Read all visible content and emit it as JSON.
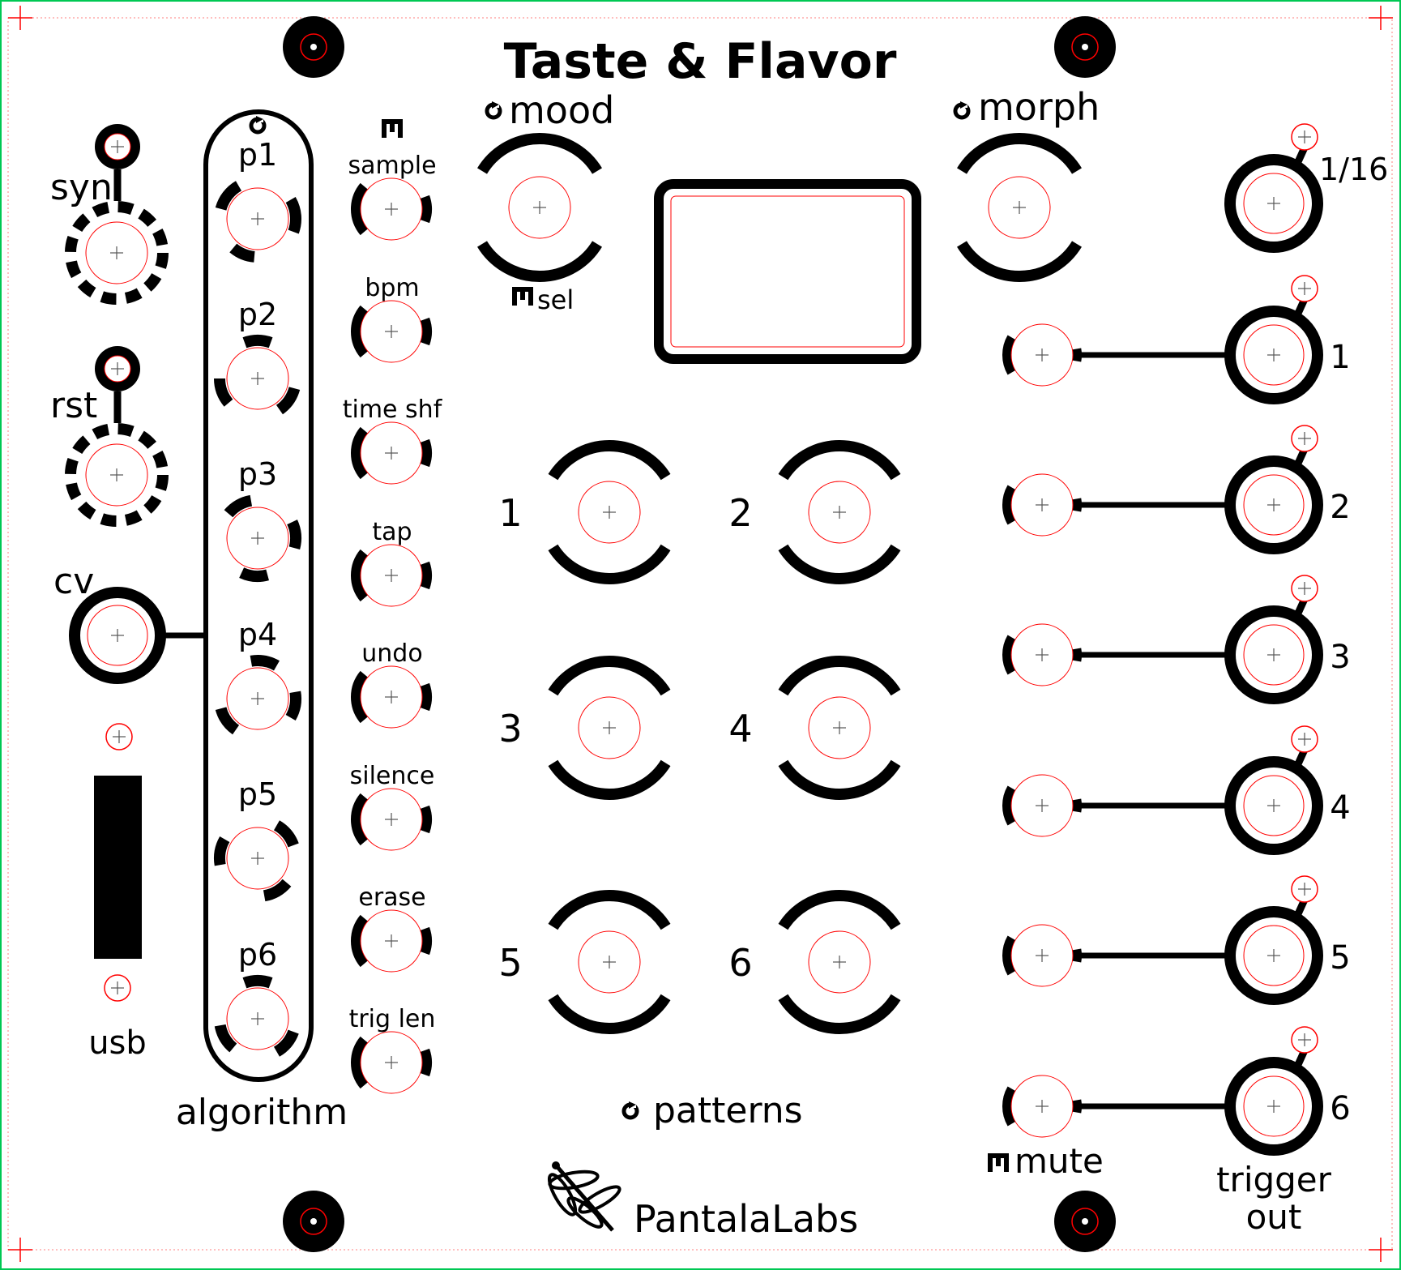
{
  "panel": {
    "title": "Taste & Flavor",
    "brand": "PantalaLabs",
    "brand_icon": "dragonfly-icon",
    "colors": {
      "ink": "#000000",
      "guide": "#ff0000",
      "outline": "#00c853",
      "background": "#ffffff"
    }
  },
  "left": {
    "syn_label": "syn",
    "rst_label": "rst",
    "cv_label": "cv",
    "usb_label": "usb"
  },
  "algorithm": {
    "label": "algorithm",
    "params": [
      "p1",
      "p2",
      "p3",
      "p4",
      "p5",
      "p6"
    ]
  },
  "functions": [
    "sample",
    "bpm",
    "time shf",
    "tap",
    "undo",
    "silence",
    "erase",
    "trig len"
  ],
  "mood": {
    "label": "mood",
    "sel_label": "sel"
  },
  "morph": {
    "label": "morph"
  },
  "patterns": {
    "label": "patterns",
    "buttons": [
      "1",
      "2",
      "3",
      "4",
      "5",
      "6"
    ]
  },
  "outputs": {
    "division": "1/16",
    "channels": [
      "1",
      "2",
      "3",
      "4",
      "5",
      "6"
    ],
    "mute_label": "mute",
    "trigger_label": "trigger",
    "out_label": "out"
  }
}
